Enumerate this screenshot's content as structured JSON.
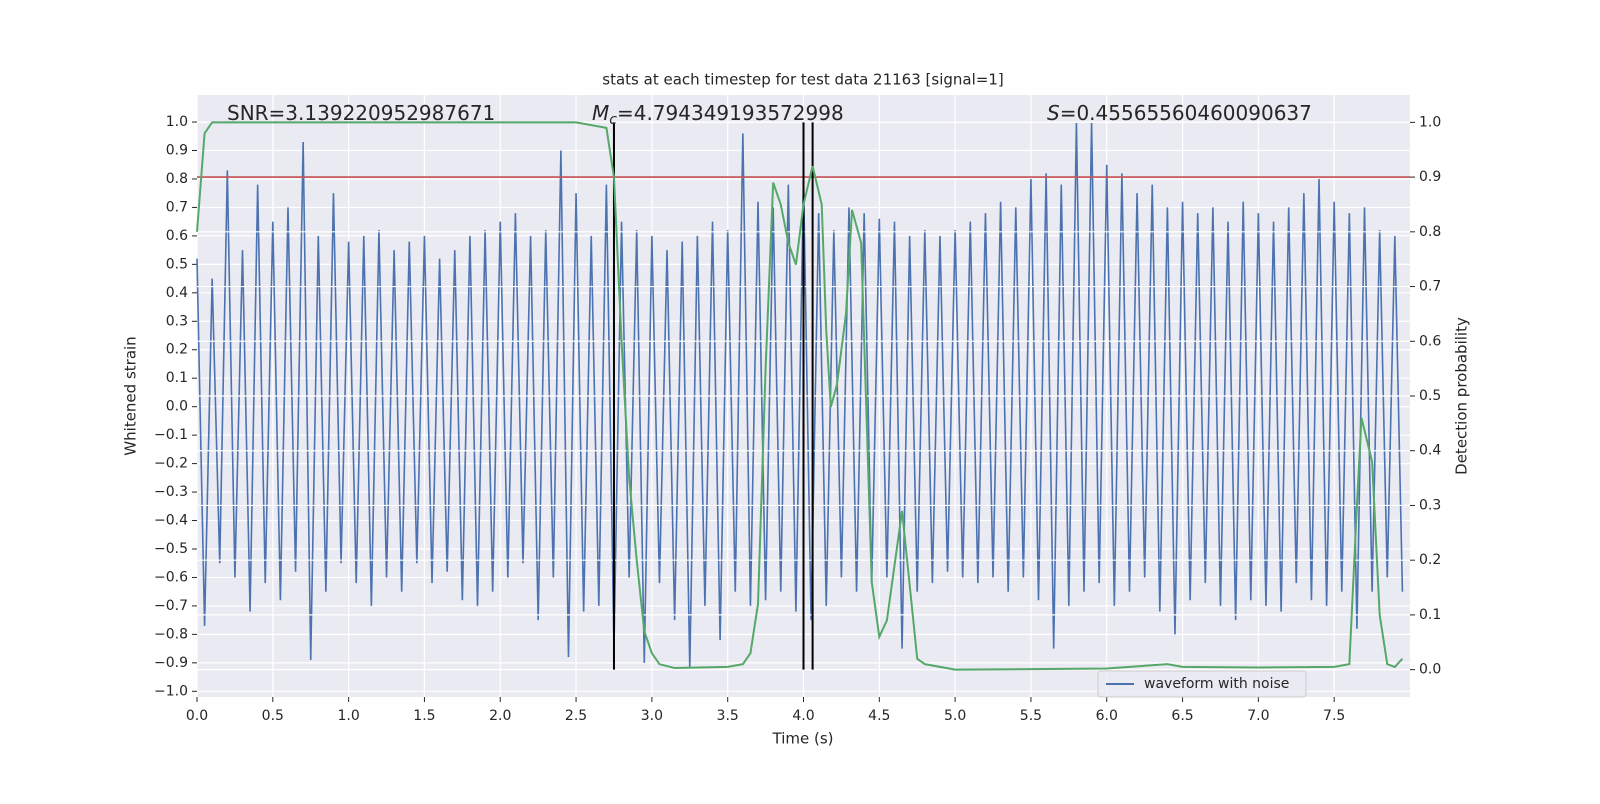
{
  "chart_data": {
    "type": "line",
    "title": "stats at each timestep for test data 21163 [signal=1]",
    "xlabel": "Time (s)",
    "ylabel": "Whitened strain",
    "y2label": "Detection probability",
    "xlim": [
      0,
      8
    ],
    "ylim": [
      -1.02,
      1.095
    ],
    "y2lim": [
      -0.05,
      1.05
    ],
    "grid": true,
    "legend_loc": "lower right",
    "xticks": [
      {
        "value": 0,
        "label": "0.0"
      },
      0.5,
      {
        "value": 1,
        "label": "1.0"
      },
      1.5,
      {
        "value": 2,
        "label": "2.0"
      },
      2.5,
      {
        "value": 3,
        "label": "3.0"
      },
      3.5,
      {
        "value": 4,
        "label": "4.0"
      },
      4.5,
      {
        "value": 5,
        "label": "5.0"
      },
      5.5,
      {
        "value": 6,
        "label": "6.0"
      },
      6.5,
      {
        "value": 7,
        "label": "7.0"
      },
      7.5
    ],
    "yticks": [
      {
        "value": -1,
        "label": "−1.0"
      },
      {
        "value": -0.9,
        "label": "−0.9"
      },
      {
        "value": -0.8,
        "label": "−0.8"
      },
      {
        "value": -0.7,
        "label": "−0.7"
      },
      {
        "value": -0.6,
        "label": "−0.6"
      },
      {
        "value": -0.5,
        "label": "−0.5"
      },
      {
        "value": -0.4,
        "label": "−0.4"
      },
      {
        "value": -0.3,
        "label": "−0.3"
      },
      {
        "value": -0.2,
        "label": "−0.2"
      },
      {
        "value": -0.1,
        "label": "−0.1"
      },
      {
        "value": 0,
        "label": "0.0"
      },
      0.1,
      0.2,
      0.3,
      0.4,
      0.5,
      0.6,
      0.7,
      0.8,
      0.9,
      {
        "value": 1,
        "label": "1.0"
      }
    ],
    "y2ticks": [
      {
        "value": 0,
        "label": "0.0"
      },
      0.1,
      0.2,
      0.3,
      0.4,
      0.5,
      0.6,
      0.7,
      0.8,
      0.9,
      {
        "value": 1,
        "label": "1.0"
      }
    ],
    "annotations": [
      {
        "text": "SNR=3.139220952987671"
      },
      {
        "symbol": "M",
        "subscript": "c",
        "text": "=4.794349193572998"
      },
      {
        "symbol": "S",
        "text": "=0.45565560460090637"
      }
    ],
    "threshold": {
      "value": 0.9,
      "axis": "y2",
      "color": "#c44e52"
    },
    "vlines": {
      "x": [
        2.75,
        4.0,
        4.06
      ],
      "range": [
        0,
        1
      ],
      "axis": "y2",
      "color": "#000000"
    },
    "series": [
      {
        "name": "waveform with noise",
        "color": "#4c72b0",
        "axis": "y",
        "x": [
          0,
          0.05,
          0.1,
          0.15,
          0.2,
          0.25,
          0.3,
          0.35,
          0.4,
          0.45,
          0.5,
          0.55,
          0.6,
          0.65,
          0.7,
          0.75,
          0.8,
          0.85,
          0.9,
          0.95,
          1,
          1.05,
          1.1,
          1.15,
          1.2,
          1.25,
          1.3,
          1.35,
          1.4,
          1.45,
          1.5,
          1.55,
          1.6,
          1.65,
          1.7,
          1.75,
          1.8,
          1.85,
          1.9,
          1.95,
          2,
          2.05,
          2.1,
          2.15,
          2.2,
          2.25,
          2.3,
          2.35,
          2.4,
          2.45,
          2.5,
          2.55,
          2.6,
          2.65,
          2.7,
          2.75,
          2.8,
          2.85,
          2.9,
          2.95,
          3,
          3.05,
          3.1,
          3.15,
          3.2,
          3.25,
          3.3,
          3.35,
          3.4,
          3.45,
          3.5,
          3.55,
          3.6,
          3.65,
          3.7,
          3.75,
          3.8,
          3.85,
          3.9,
          3.95,
          4,
          4.05,
          4.1,
          4.15,
          4.2,
          4.25,
          4.3,
          4.35,
          4.4,
          4.45,
          4.5,
          4.55,
          4.6,
          4.65,
          4.7,
          4.75,
          4.8,
          4.85,
          4.9,
          4.95,
          5,
          5.05,
          5.1,
          5.15,
          5.2,
          5.25,
          5.3,
          5.35,
          5.4,
          5.45,
          5.5,
          5.55,
          5.6,
          5.65,
          5.7,
          5.75,
          5.8,
          5.85,
          5.9,
          5.95,
          6,
          6.05,
          6.1,
          6.15,
          6.2,
          6.25,
          6.3,
          6.35,
          6.4,
          6.45,
          6.5,
          6.55,
          6.6,
          6.65,
          6.7,
          6.75,
          6.8,
          6.85,
          6.9,
          6.95,
          7,
          7.05,
          7.1,
          7.15,
          7.2,
          7.25,
          7.3,
          7.35,
          7.4,
          7.45,
          7.5,
          7.55,
          7.6,
          7.65,
          7.7,
          7.75,
          7.8,
          7.85,
          7.9,
          7.95
        ],
        "values": [
          0.52,
          -0.77,
          0.45,
          -0.55,
          0.83,
          -0.6,
          0.55,
          -0.72,
          0.78,
          -0.62,
          0.65,
          -0.68,
          0.7,
          -0.58,
          0.93,
          -0.89,
          0.6,
          -0.65,
          0.75,
          -0.55,
          0.58,
          -0.62,
          0.6,
          -0.7,
          0.62,
          -0.6,
          0.55,
          -0.65,
          0.58,
          -0.55,
          0.6,
          -0.62,
          0.52,
          -0.58,
          0.55,
          -0.68,
          0.6,
          -0.7,
          0.62,
          -0.65,
          0.65,
          -0.6,
          0.68,
          -0.55,
          0.6,
          -0.75,
          0.62,
          -0.6,
          0.9,
          -0.88,
          0.75,
          -0.72,
          0.6,
          -0.7,
          0.78,
          -0.85,
          0.65,
          -0.6,
          0.62,
          -0.9,
          0.6,
          -0.62,
          0.55,
          -0.75,
          0.58,
          -0.92,
          0.6,
          -0.7,
          0.65,
          -0.82,
          0.62,
          -0.65,
          0.96,
          -0.7,
          0.72,
          -0.68,
          0.7,
          -0.65,
          0.78,
          -0.72,
          0.8,
          -0.75,
          0.68,
          -0.7,
          0.62,
          -0.6,
          0.7,
          -0.65,
          0.68,
          -0.62,
          0.66,
          -0.6,
          0.65,
          -0.85,
          0.6,
          -0.65,
          0.62,
          -0.62,
          0.6,
          -0.58,
          0.62,
          -0.6,
          0.65,
          -0.62,
          0.68,
          -0.6,
          0.72,
          -0.65,
          0.7,
          -0.6,
          0.8,
          -0.68,
          0.82,
          -0.85,
          0.78,
          -0.7,
          1.0,
          -0.65,
          1.0,
          -0.62,
          0.85,
          -0.7,
          0.82,
          -0.65,
          0.75,
          -0.6,
          0.78,
          -0.72,
          0.7,
          -0.8,
          0.72,
          -0.68,
          0.68,
          -0.62,
          0.7,
          -0.7,
          0.65,
          -0.75,
          0.72,
          -0.68,
          0.68,
          -0.7,
          0.65,
          -0.72,
          0.7,
          -0.62,
          0.75,
          -0.68,
          0.8,
          -0.7,
          0.72,
          -0.65,
          0.68,
          -0.78,
          0.7,
          -0.65,
          0.62,
          -0.6,
          0.6,
          -0.65
        ]
      },
      {
        "color": "#55a868",
        "axis": "y2",
        "x": [
          0,
          0.05,
          0.1,
          0.5,
          1.0,
          1.5,
          2.0,
          2.5,
          2.7,
          2.75,
          2.8,
          2.85,
          2.9,
          2.95,
          3.0,
          3.05,
          3.15,
          3.5,
          3.6,
          3.65,
          3.7,
          3.75,
          3.8,
          3.85,
          3.9,
          3.95,
          4.0,
          4.06,
          4.12,
          4.15,
          4.18,
          4.22,
          4.28,
          4.32,
          4.38,
          4.45,
          4.5,
          4.55,
          4.65,
          4.75,
          4.8,
          5.0,
          6.0,
          6.4,
          6.5,
          7.0,
          7.5,
          7.6,
          7.65,
          7.68,
          7.75,
          7.8,
          7.85,
          7.9,
          7.95
        ],
        "values": [
          0.8,
          0.98,
          1.0,
          1.0,
          1.0,
          1.0,
          1.0,
          1.0,
          0.99,
          0.9,
          0.6,
          0.35,
          0.2,
          0.07,
          0.03,
          0.01,
          0.003,
          0.005,
          0.01,
          0.03,
          0.12,
          0.55,
          0.89,
          0.85,
          0.78,
          0.74,
          0.85,
          0.92,
          0.85,
          0.62,
          0.48,
          0.52,
          0.65,
          0.84,
          0.78,
          0.16,
          0.06,
          0.09,
          0.29,
          0.02,
          0.01,
          0.0,
          0.002,
          0.01,
          0.005,
          0.004,
          0.005,
          0.01,
          0.3,
          0.46,
          0.38,
          0.1,
          0.01,
          0.005,
          0.02
        ]
      }
    ]
  }
}
